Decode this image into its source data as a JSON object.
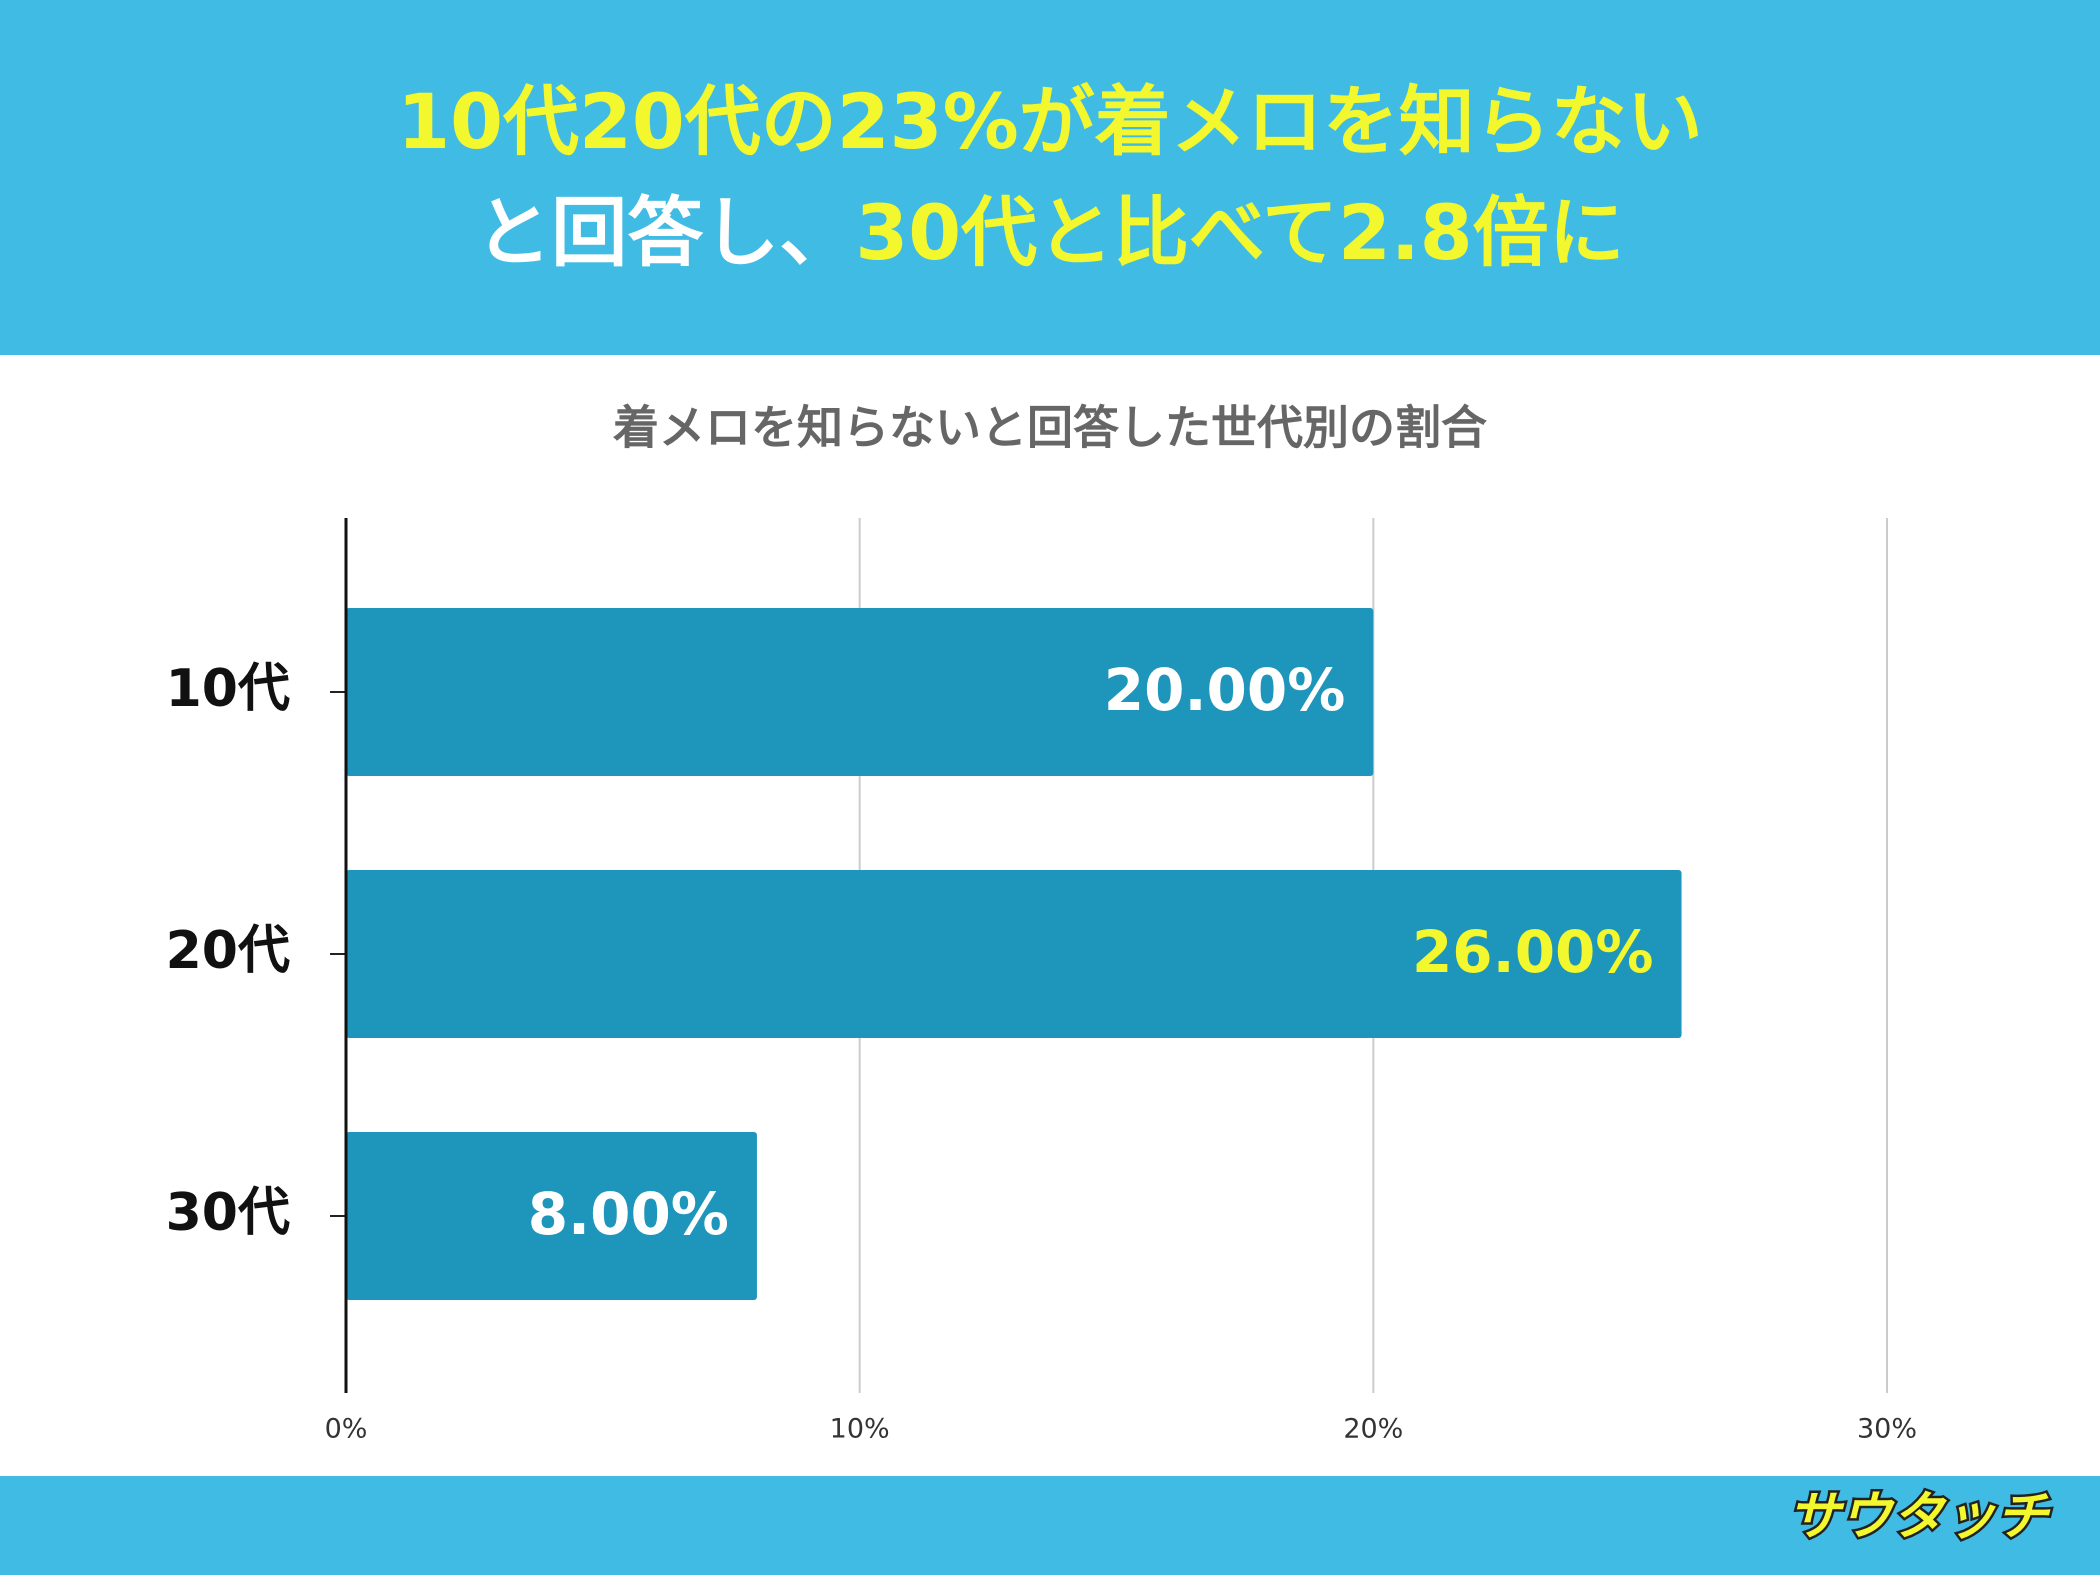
{
  "header": {
    "line1": "10代20代の23%が着メロを知らない",
    "line2a": "と回答し、",
    "line2b": "30代と比べて2.8倍に",
    "logo": "サウタッチ"
  },
  "chart_data": {
    "type": "bar",
    "orientation": "horizontal",
    "title": "着メロを知らないと回答した世代別の割合",
    "categories": [
      "10代",
      "20代",
      "30代"
    ],
    "values": [
      20,
      26,
      8
    ],
    "value_labels": [
      "20.00%",
      "26.00%",
      "8.00%"
    ],
    "value_label_colors": [
      "#ffffff",
      "#f2f72e",
      "#ffffff"
    ],
    "color": "#1e95ba",
    "xlim": [
      0,
      30
    ],
    "xticks": [
      {
        "value": 0,
        "label": "0%"
      },
      {
        "value": 10,
        "label": "10%"
      },
      {
        "value": 20,
        "label": "20%"
      },
      {
        "value": 30,
        "label": "30%"
      }
    ],
    "grid": true
  }
}
